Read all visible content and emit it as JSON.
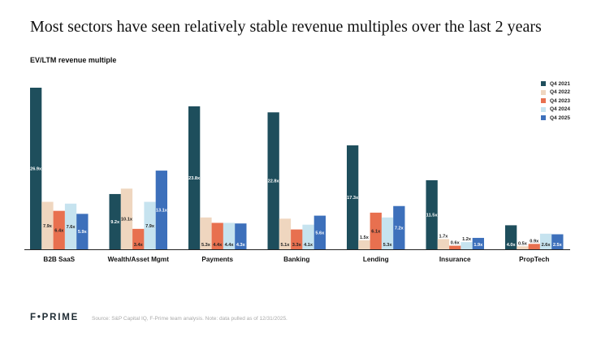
{
  "page": {
    "title": "Most sectors have seen relatively stable revenue multiples over the last 2 years",
    "logo": "F•PRIME",
    "source": "Source: S&P Capital IQ, F-Prime team analysis. Note: data pulled as of 12/31/2025."
  },
  "chart_data": {
    "type": "bar",
    "title": "Most sectors have seen relatively stable revenue multiples over the last 2 years",
    "ylabel": "EV/LTM revenue multiple",
    "xlabel": "",
    "ylim": [
      0,
      27
    ],
    "grid": false,
    "legend_position": "top-right",
    "categories": [
      "B2B SaaS",
      "Wealth/Asset Mgmt",
      "Payments",
      "Banking",
      "Lending",
      "Insurance",
      "PropTech"
    ],
    "series": [
      {
        "name": "Q4 2021",
        "color": "#1e4e5c",
        "values": [
          26.9,
          9.2,
          23.8,
          22.8,
          17.3,
          11.5,
          4.0
        ],
        "labels": [
          "26.9x",
          "9.2x",
          "23.8x",
          "22.8x",
          "17.3x",
          "11.5x",
          "4.0x"
        ]
      },
      {
        "name": "Q4 2022",
        "color": "#efd6bf",
        "values": [
          7.9,
          10.1,
          5.3,
          5.1,
          1.5,
          1.7,
          0.5
        ],
        "labels": [
          "7.9x",
          "10.1x",
          "5.3x",
          "5.1x",
          "1.5x",
          "1.7x",
          "0.5x"
        ]
      },
      {
        "name": "Q4 2023",
        "color": "#e8704f",
        "values": [
          6.4,
          3.4,
          4.4,
          3.3,
          6.1,
          0.6,
          0.9
        ],
        "labels": [
          "6.4x",
          "3.4x",
          "4.4x",
          "3.3x",
          "6.1x",
          "0.6x",
          "0.9x"
        ]
      },
      {
        "name": "Q4 2024",
        "color": "#c6e3ef",
        "values": [
          7.6,
          7.9,
          4.4,
          4.1,
          5.3,
          1.2,
          2.6
        ],
        "labels": [
          "7.6x",
          "7.9x",
          "4.4x",
          "4.1x",
          "5.3x",
          "1.2x",
          "2.6x"
        ]
      },
      {
        "name": "Q4 2025",
        "color": "#3d70bb",
        "values": [
          5.9,
          13.1,
          4.3,
          5.6,
          7.2,
          1.9,
          2.5
        ],
        "labels": [
          "5.9x",
          "13.1x",
          "4.3x",
          "5.6x",
          "7.2x",
          "1.9x",
          "2.5x"
        ]
      }
    ]
  }
}
